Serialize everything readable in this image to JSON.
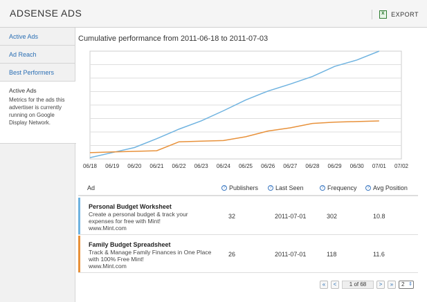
{
  "app": {
    "title": "ADSENSE ADS",
    "export_label": "EXPORT",
    "export_icon": "excel-export-icon"
  },
  "sidebar": {
    "items": [
      {
        "label": "Active Ads"
      },
      {
        "label": "Ad Reach"
      },
      {
        "label": "Best Performers"
      }
    ],
    "panel": {
      "title": "Active Ads",
      "description": "Metrics for the ads this advertiser is currently running on Google Display Network."
    }
  },
  "chart_title": "Cumulative performance from 2011-06-18 to 2011-07-03",
  "chart_data": {
    "type": "line",
    "x_tick_labels": [
      "06/18",
      "06/19",
      "06/20",
      "06/21",
      "06/22",
      "06/23",
      "06/24",
      "06/25",
      "06/26",
      "06/27",
      "06/28",
      "06/29",
      "06/30",
      "07/01",
      "07/02"
    ],
    "x": [
      "06/18",
      "06/19",
      "06/20",
      "06/21",
      "06/22",
      "06/23",
      "06/24",
      "06/25",
      "06/26",
      "06/27",
      "06/28",
      "06/29",
      "06/30",
      "07/01"
    ],
    "series": [
      {
        "color": "#6fb3e0",
        "values": [
          2,
          10,
          18,
          32,
          47,
          60,
          76,
          93,
          107,
          118,
          130,
          146,
          156,
          170
        ]
      },
      {
        "color": "#e8913a",
        "values": [
          10,
          11,
          12,
          13,
          27,
          28,
          29,
          35,
          44,
          49,
          56,
          58,
          59,
          60
        ]
      }
    ],
    "ylim": [
      0,
      170
    ],
    "grid": true
  },
  "table": {
    "columns": [
      {
        "label": "Ad",
        "help": false
      },
      {
        "label": "Publishers",
        "help": true
      },
      {
        "label": "Last Seen",
        "help": true
      },
      {
        "label": "Frequency",
        "help": true
      },
      {
        "label": "Avg Position",
        "help": true
      }
    ],
    "rows": [
      {
        "title": "Personal Budget Worksheet",
        "desc_line1": "Create a personal budget & track your",
        "desc_line2": "expenses for free with Mint!",
        "url": "www.Mint.com",
        "publishers": "32",
        "last_seen": "2011-07-01",
        "frequency": "302",
        "avg_position": "10.8",
        "color": "#6fb3e0"
      },
      {
        "title": "Family Budget Spreadsheet",
        "desc_line1": "Track & Manage Family Finances in One Place",
        "desc_line2": "with 100% Free Mint!",
        "url": "www.Mint.com",
        "publishers": "26",
        "last_seen": "2011-07-01",
        "frequency": "118",
        "avg_position": "11.6",
        "color": "#e8913a"
      }
    ]
  },
  "pager": {
    "first": "«",
    "prev": "<",
    "page_text": "1 of 68",
    "next": ">",
    "last": "»",
    "per_page": "2"
  }
}
